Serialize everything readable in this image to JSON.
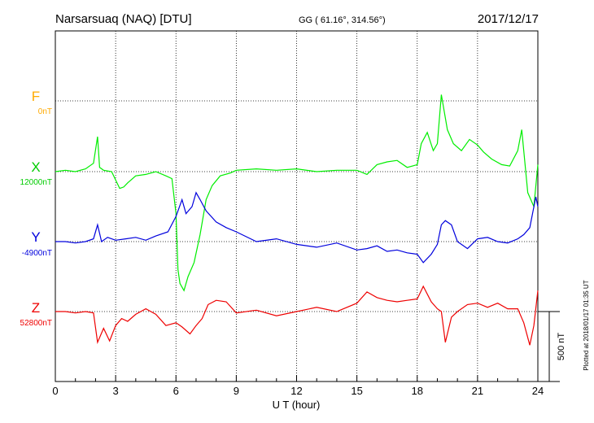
{
  "header": {
    "station": "Narsarsuaq (NAQ)  [DTU]",
    "coords": "GG ( 61.16°, 314.56°)",
    "date": "2017/12/17"
  },
  "axis": {
    "xlabel": "U T (hour)",
    "ticks": [
      "0",
      "3",
      "6",
      "9",
      "12",
      "15",
      "18",
      "21",
      "24"
    ],
    "scale_label": "500 nT",
    "plotted": "Plotted at 2018/01/17 01:35 UT"
  },
  "colors": {
    "F": "#ffaa00",
    "X": "#00ee00",
    "Y": "#0000dd",
    "Z": "#ee0000",
    "axis": "#000000",
    "grid": "#000000"
  },
  "chart_data": {
    "type": "line",
    "x_unit": "hour (UT)",
    "xlim": [
      0,
      24
    ],
    "y_unit": "nT",
    "scale_bar_nT": 500,
    "grid": true,
    "series": [
      {
        "name": "F",
        "baseline_label": "0nT",
        "x": [],
        "values": []
      },
      {
        "name": "X",
        "baseline_label": "12000nT",
        "x": [
          0,
          0.5,
          1.0,
          1.5,
          1.9,
          2.1,
          2.2,
          2.4,
          2.8,
          3.2,
          3.4,
          3.6,
          4.0,
          4.5,
          5.0,
          5.5,
          5.8,
          6.0,
          6.1,
          6.2,
          6.4,
          6.6,
          6.9,
          7.2,
          7.5,
          7.8,
          8.2,
          8.7,
          9.0,
          10,
          11,
          12,
          13,
          14,
          15,
          15.5,
          16,
          16.5,
          17,
          17.5,
          18,
          18.2,
          18.5,
          18.8,
          19.0,
          19.2,
          19.5,
          19.8,
          20.2,
          20.6,
          21.0,
          21.3,
          21.7,
          22.2,
          22.6,
          23.0,
          23.2,
          23.5,
          23.8,
          24
        ],
        "values": [
          12000,
          12010,
          12000,
          12020,
          12060,
          12250,
          12030,
          12010,
          12000,
          11880,
          11890,
          11920,
          11970,
          11980,
          12000,
          11970,
          11950,
          11700,
          11300,
          11200,
          11150,
          11250,
          11350,
          11550,
          11800,
          11900,
          11970,
          11990,
          12010,
          12020,
          12010,
          12020,
          12000,
          12010,
          12010,
          11980,
          12050,
          12070,
          12080,
          12030,
          12050,
          12200,
          12280,
          12150,
          12200,
          12550,
          12300,
          12200,
          12150,
          12230,
          12190,
          12140,
          12090,
          12050,
          12040,
          12150,
          12300,
          11850,
          11750,
          12050
        ]
      },
      {
        "name": "Y",
        "baseline_label": "-4900nT",
        "x": [
          0,
          0.5,
          1.0,
          1.5,
          1.9,
          2.1,
          2.3,
          2.6,
          3.0,
          3.5,
          4.0,
          4.5,
          5.0,
          5.6,
          6.0,
          6.3,
          6.5,
          6.8,
          7.0,
          7.2,
          7.5,
          8.0,
          8.5,
          9.0,
          10,
          11,
          12,
          13,
          14,
          15,
          15.5,
          16,
          16.5,
          17,
          17.5,
          18,
          18.3,
          18.7,
          19.0,
          19.2,
          19.4,
          19.7,
          20.0,
          20.5,
          21.0,
          21.5,
          22.0,
          22.5,
          23.0,
          23.3,
          23.6,
          23.9,
          24
        ],
        "values": [
          -4900,
          -4900,
          -4910,
          -4900,
          -4880,
          -4780,
          -4900,
          -4870,
          -4890,
          -4880,
          -4870,
          -4890,
          -4860,
          -4830,
          -4720,
          -4600,
          -4700,
          -4650,
          -4550,
          -4600,
          -4680,
          -4760,
          -4800,
          -4830,
          -4900,
          -4880,
          -4920,
          -4940,
          -4910,
          -4960,
          -4950,
          -4930,
          -4970,
          -4960,
          -4980,
          -4990,
          -5050,
          -4990,
          -4920,
          -4780,
          -4750,
          -4780,
          -4900,
          -4950,
          -4880,
          -4870,
          -4900,
          -4910,
          -4880,
          -4850,
          -4800,
          -4580,
          -4650
        ]
      },
      {
        "name": "Z",
        "baseline_label": "52800nT",
        "x": [
          0,
          0.5,
          1.0,
          1.5,
          1.9,
          2.1,
          2.4,
          2.7,
          3.0,
          3.3,
          3.6,
          4.0,
          4.5,
          5.0,
          5.5,
          6.0,
          6.3,
          6.7,
          7.0,
          7.3,
          7.6,
          8.0,
          8.5,
          9.0,
          10,
          11,
          12,
          13,
          14,
          15,
          15.5,
          16,
          16.5,
          17,
          17.5,
          18,
          18.3,
          18.7,
          19.0,
          19.2,
          19.4,
          19.7,
          20.0,
          20.5,
          21.0,
          21.5,
          22.0,
          22.5,
          23.0,
          23.3,
          23.6,
          23.8,
          24
        ],
        "values": [
          52800,
          52800,
          52790,
          52800,
          52790,
          52580,
          52680,
          52590,
          52700,
          52750,
          52730,
          52780,
          52820,
          52780,
          52700,
          52720,
          52690,
          52640,
          52700,
          52750,
          52850,
          52880,
          52870,
          52790,
          52810,
          52770,
          52800,
          52830,
          52800,
          52860,
          52940,
          52900,
          52880,
          52870,
          52880,
          52890,
          52980,
          52870,
          52820,
          52800,
          52580,
          52760,
          52800,
          52850,
          52860,
          52830,
          52860,
          52820,
          52820,
          52720,
          52560,
          52700,
          52950
        ]
      }
    ]
  }
}
